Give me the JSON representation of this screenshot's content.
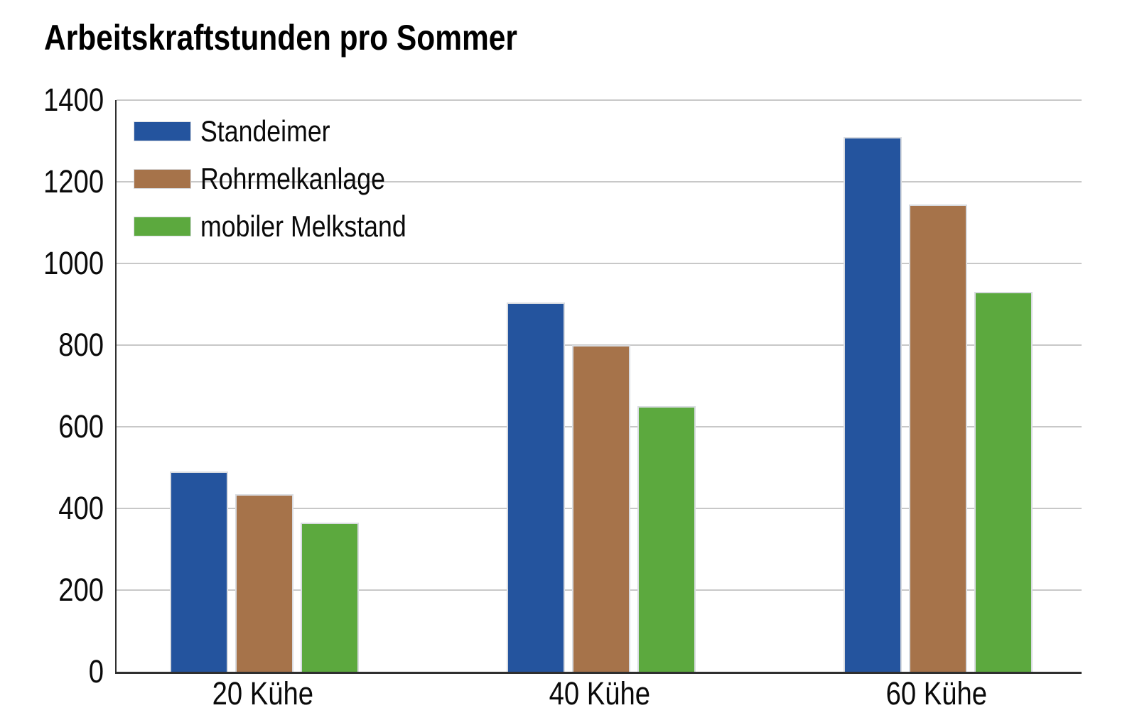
{
  "title": "Arbeitskraftstunden pro Sommer",
  "chart_data": {
    "type": "bar",
    "title": "Arbeitskraftstunden pro Sommer",
    "categories": [
      "20 Kühe",
      "40 Kühe",
      "60 Kühe"
    ],
    "series": [
      {
        "name": "Standeimer",
        "color": "#24549E",
        "values": [
          490,
          905,
          1310
        ]
      },
      {
        "name": "Rohrmelkanlage",
        "color": "#A6734A",
        "values": [
          435,
          800,
          1145
        ]
      },
      {
        "name": "mobiler Melkstand",
        "color": "#5CA93E",
        "values": [
          365,
          650,
          930
        ]
      }
    ],
    "xlabel": "",
    "ylabel": "",
    "ylim": [
      0,
      1400
    ],
    "yticks": [
      0,
      200,
      400,
      600,
      800,
      1000,
      1200,
      1400
    ],
    "grid": true,
    "legend_position": "top-left-inside",
    "colors": {
      "axis": "#2f2f2f",
      "gridline": "#c8c8c8",
      "bar_outline": "#d9dce1",
      "background": "#ffffff",
      "text": "#000000"
    }
  }
}
